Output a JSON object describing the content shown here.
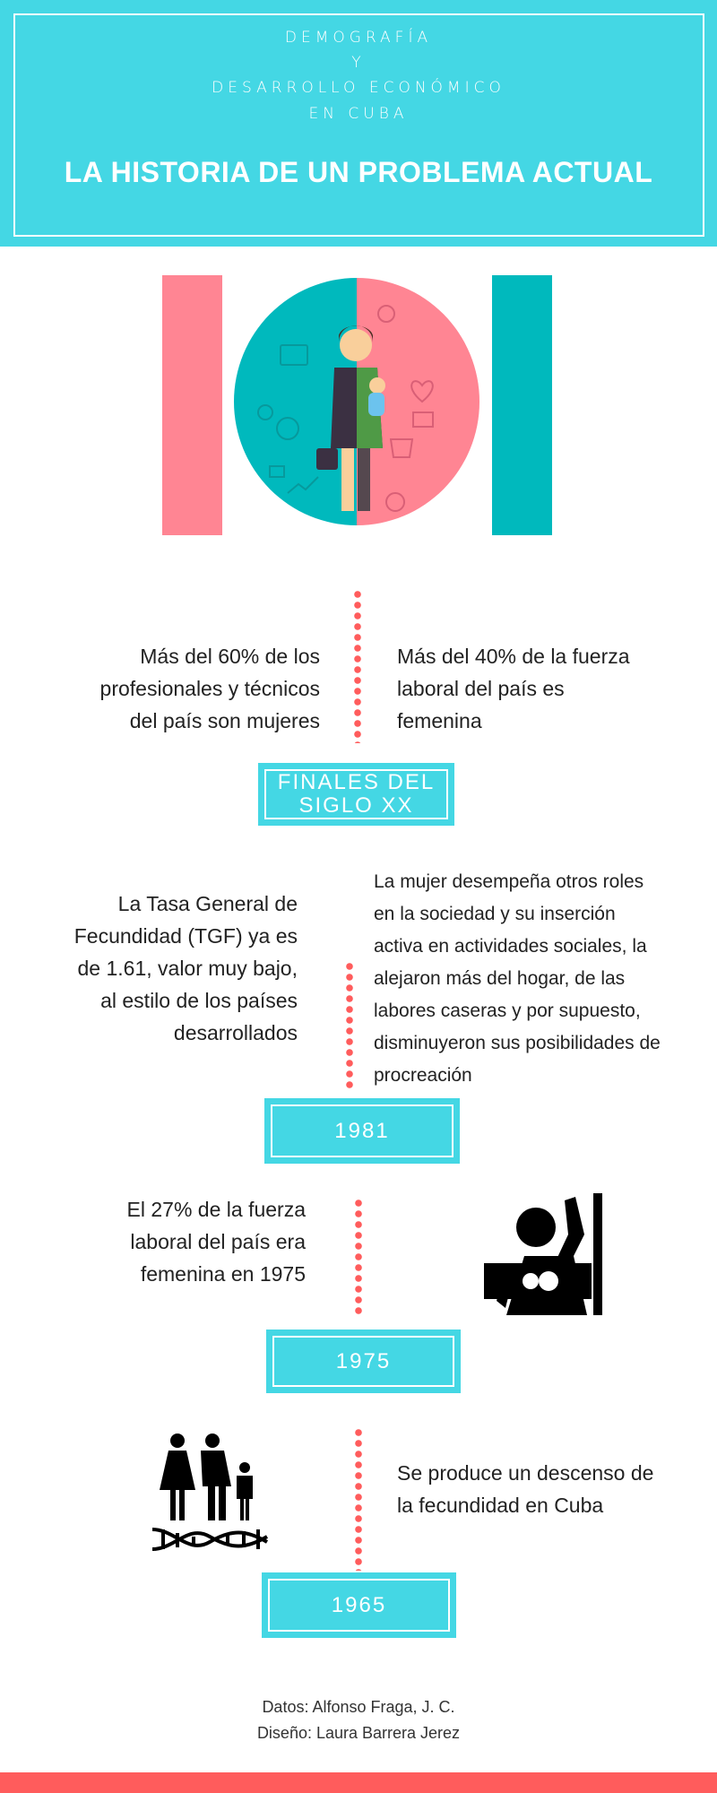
{
  "header": {
    "subtitle_lines": [
      "DEMOGRAFÍA",
      "Y",
      "DESARROLLO ECONÓMICO",
      "EN CUBA"
    ],
    "title": "LA HISTORIA DE UN PROBLEMA ACTUAL"
  },
  "colors": {
    "cyan": "#44d7e4",
    "teal": "#00b9bd",
    "pink": "#ff8593",
    "coral": "#ff5c5c"
  },
  "sections": [
    {
      "label_lines": [
        "FINALES DEL",
        "SIGLO XX"
      ],
      "left": [
        "Más del 60% de los",
        "profesionales y técnicos",
        "del país son mujeres"
      ],
      "right": [
        "Más del 40% de la fuerza",
        "laboral del país es",
        "femenina"
      ]
    },
    {
      "label": "1981",
      "left": [
        "La Tasa General de",
        "Fecundidad (TGF) ya es",
        "de 1.61, valor muy bajo,",
        "al estilo de los países",
        "desarrollados"
      ],
      "right": [
        "La mujer desempeña otros roles",
        "en la sociedad y su inserción",
        "activa en actividades sociales, la",
        "alejaron más del hogar, de las",
        "labores caseras y por supuesto,",
        "disminuyeron sus posibilidades de",
        "procreación"
      ]
    },
    {
      "label": "1975",
      "left": [
        "El 27% de la fuerza",
        "laboral del país era",
        "femenina en 1975"
      ],
      "icon": "breastfeeding-icon"
    },
    {
      "label": "1965",
      "right": [
        "Se produce un descenso de",
        "la fecundidad en Cuba"
      ],
      "icon": "family-dna-icon"
    }
  ],
  "credits": [
    "Datos: Alfonso Fraga, J. C.",
    "Diseño: Laura Barrera Jerez"
  ]
}
